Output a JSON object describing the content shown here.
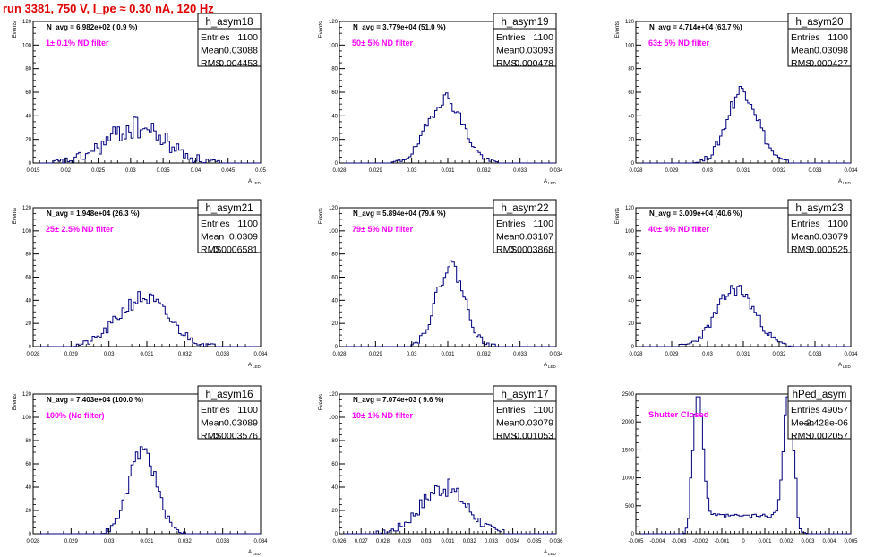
{
  "title": "run 3381,   750 V, I_pe ≈ 0.30 nA, 120 Hz",
  "stat_labels": {
    "entries": "Entries",
    "mean": "Mean",
    "rms": "RMS"
  },
  "colors": {
    "histogram": "#00007f",
    "annotation": "#ff00ff",
    "title": "#e00000"
  },
  "chart_data": [
    {
      "type": "histogram",
      "name": "h_asym18",
      "navg": "N_avg = 6.982e+02 ( 0.9 %)",
      "filter": "1± 0.1% ND filter",
      "entries": "1100",
      "mean": "0.03088",
      "rms": "0.004453",
      "xlabel": "A_LED",
      "ylabel": "Events",
      "xlim": [
        0.015,
        0.05
      ],
      "ylim": [
        0,
        120
      ],
      "xticks": [
        "0.015",
        "0.02",
        "0.025",
        "0.03",
        "0.035",
        "0.04",
        "0.045",
        "0.05"
      ],
      "yticks": [
        "0",
        "20",
        "40",
        "60",
        "80",
        "100",
        "120"
      ],
      "shape": {
        "centers": [
          0.0309
        ],
        "sigma": 0.0045,
        "peak": 30,
        "noise": 10,
        "seed": 18
      }
    },
    {
      "type": "histogram",
      "name": "h_asym19",
      "navg": "N_avg = 3.779e+04 (51.0 %)",
      "filter": "50± 5% ND filter",
      "entries": "1100",
      "mean": "0.03093",
      "rms": "0.000478",
      "xlabel": "A_LED",
      "ylabel": "Events",
      "xlim": [
        0.028,
        0.034
      ],
      "ylim": [
        0,
        120
      ],
      "xticks": [
        "0.028",
        "0.029",
        "0.03",
        "0.031",
        "0.032",
        "0.033",
        "0.034"
      ],
      "yticks": [
        "0",
        "20",
        "40",
        "60",
        "80",
        "100",
        "120"
      ],
      "shape": {
        "centers": [
          0.03093
        ],
        "sigma": 0.00048,
        "peak": 55,
        "noise": 6,
        "seed": 19
      }
    },
    {
      "type": "histogram",
      "name": "h_asym20",
      "navg": "N_avg = 4.714e+04 (63.7 %)",
      "filter": "63± 5% ND filter",
      "entries": "1100",
      "mean": "0.03098",
      "rms": "0.000427",
      "xlabel": "A_LED",
      "ylabel": "Events",
      "xlim": [
        0.028,
        0.034
      ],
      "ylim": [
        0,
        120
      ],
      "xticks": [
        "0.028",
        "0.029",
        "0.03",
        "0.031",
        "0.032",
        "0.033",
        "0.034"
      ],
      "yticks": [
        "0",
        "20",
        "40",
        "60",
        "80",
        "100",
        "120"
      ],
      "shape": {
        "centers": [
          0.03098
        ],
        "sigma": 0.00043,
        "peak": 62,
        "noise": 7,
        "seed": 20
      }
    },
    {
      "type": "histogram",
      "name": "h_asym21",
      "navg": "N_avg = 1.948e+04 (26.3 %)",
      "filter": "25± 2.5% ND filter",
      "entries": "1100",
      "mean": "0.0309",
      "rms": "0.0006581",
      "xlabel": "A_LED",
      "ylabel": "Events",
      "xlim": [
        0.028,
        0.034
      ],
      "ylim": [
        0,
        120
      ],
      "xticks": [
        "0.028",
        "0.029",
        "0.03",
        "0.031",
        "0.032",
        "0.033",
        "0.034"
      ],
      "yticks": [
        "0",
        "20",
        "40",
        "60",
        "80",
        "100",
        "120"
      ],
      "shape": {
        "centers": [
          0.0309
        ],
        "sigma": 0.00066,
        "peak": 42,
        "noise": 7,
        "seed": 21
      }
    },
    {
      "type": "histogram",
      "name": "h_asym22",
      "navg": "N_avg = 5.894e+04 (79.6 %)",
      "filter": "79± 5% ND filter",
      "entries": "1100",
      "mean": "0.03107",
      "rms": "0.0003868",
      "xlabel": "A_LED",
      "ylabel": "Events",
      "xlim": [
        0.028,
        0.034
      ],
      "ylim": [
        0,
        120
      ],
      "xticks": [
        "0.028",
        "0.029",
        "0.03",
        "0.031",
        "0.032",
        "0.033",
        "0.034"
      ],
      "yticks": [
        "0",
        "20",
        "40",
        "60",
        "80",
        "100",
        "120"
      ],
      "shape": {
        "centers": [
          0.03107
        ],
        "sigma": 0.00039,
        "peak": 70,
        "noise": 7,
        "seed": 22
      }
    },
    {
      "type": "histogram",
      "name": "h_asym23",
      "navg": "N_avg = 3.009e+04 (40.6 %)",
      "filter": "40± 4% ND filter",
      "entries": "1100",
      "mean": "0.03079",
      "rms": "0.000525",
      "xlabel": "A_LED",
      "ylabel": "Events",
      "xlim": [
        0.028,
        0.034
      ],
      "ylim": [
        0,
        120
      ],
      "xticks": [
        "0.028",
        "0.029",
        "0.03",
        "0.031",
        "0.032",
        "0.033",
        "0.034"
      ],
      "yticks": [
        "0",
        "20",
        "40",
        "60",
        "80",
        "100",
        "120"
      ],
      "shape": {
        "centers": [
          0.03079
        ],
        "sigma": 0.00053,
        "peak": 50,
        "noise": 6,
        "seed": 23
      }
    },
    {
      "type": "histogram",
      "name": "h_asym16",
      "navg": "N_avg = 7.403e+04 (100.0 %)",
      "filter": "100% (No filter)",
      "entries": "1100",
      "mean": "0.03089",
      "rms": "0.0003576",
      "xlabel": "A_LED",
      "ylabel": "Events",
      "xlim": [
        0.028,
        0.034
      ],
      "ylim": [
        0,
        120
      ],
      "xticks": [
        "0.028",
        "0.029",
        "0.03",
        "0.031",
        "0.032",
        "0.033",
        "0.034"
      ],
      "yticks": [
        "0",
        "20",
        "40",
        "60",
        "80",
        "100",
        "120"
      ],
      "shape": {
        "centers": [
          0.03089
        ],
        "sigma": 0.00036,
        "peak": 72,
        "noise": 7,
        "seed": 16
      }
    },
    {
      "type": "histogram",
      "name": "h_asym17",
      "navg": "N_avg = 7.074e+03 ( 9.6 %)",
      "filter": "10± 1% ND filter",
      "entries": "1100",
      "mean": "0.03079",
      "rms": "0.001053",
      "xlabel": "A_LED",
      "ylabel": "Events",
      "xlim": [
        0.026,
        0.036
      ],
      "ylim": [
        0,
        120
      ],
      "xticks": [
        "0.026",
        "0.027",
        "0.028",
        "0.029",
        "0.03",
        "0.031",
        "0.032",
        "0.033",
        "0.034",
        "0.035",
        "0.036"
      ],
      "yticks": [
        "0",
        "20",
        "40",
        "60",
        "80",
        "100",
        "120"
      ],
      "shape": {
        "centers": [
          0.0308
        ],
        "sigma": 0.00105,
        "peak": 40,
        "noise": 8,
        "seed": 17
      }
    },
    {
      "type": "histogram",
      "name": "hPed_asym",
      "navg": "",
      "filter": "Shutter Closed",
      "entries": "49057",
      "mean": "-2.428e-06",
      "rms": "0.002057",
      "xlabel": "",
      "ylabel": "",
      "xlim": [
        -0.005,
        0.005
      ],
      "ylim": [
        0,
        2500
      ],
      "xticks": [
        "-0.005",
        "-0.004",
        "-0.003",
        "-0.002",
        "-0.001",
        "0",
        "0.001",
        "0.002",
        "0.003",
        "0.004",
        "0.005"
      ],
      "yticks": [
        "0",
        "500",
        "1000",
        "1500",
        "2000",
        "2500"
      ],
      "shape": {
        "centers": [
          -0.0021,
          0.0021
        ],
        "sigma": 0.00022,
        "peak": 2300,
        "noise": 80,
        "baseline": 320,
        "seed": 99
      }
    }
  ]
}
